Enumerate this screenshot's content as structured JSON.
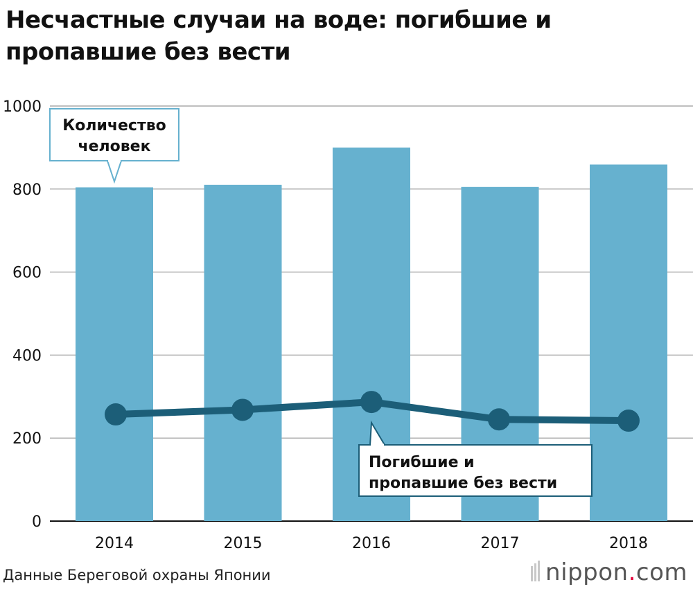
{
  "title": "Несчастные случаи на воде: погибшие и пропавшие без вести",
  "source": "Данные Береговой охраны Японии",
  "logo": {
    "name": "nippon",
    "dot": ".",
    "tld": "com"
  },
  "colors": {
    "bar": "#66b1cf",
    "line": "#1c5e78",
    "grid": "#999999",
    "axis": "#111111"
  },
  "chart_data": {
    "type": "bar",
    "title": "Несчастные случаи на воде: погибшие и пропавшие без вести",
    "categories": [
      "2014",
      "2015",
      "2016",
      "2017",
      "2018"
    ],
    "ylim": [
      0,
      1000
    ],
    "yticks": [
      "0",
      "200",
      "400",
      "600",
      "800",
      "1000"
    ],
    "grid": true,
    "series": [
      {
        "name": "Количество человек",
        "type": "bar",
        "values": [
          804,
          810,
          900,
          805,
          859
        ]
      },
      {
        "name": "Погибшие и пропавшие без вести",
        "type": "line",
        "values": [
          257,
          268,
          287,
          245,
          242
        ]
      }
    ],
    "callouts": {
      "bar_label": [
        "Количество",
        "человек"
      ],
      "line_label": [
        "Погибшие и",
        "пропавшие без вести"
      ]
    }
  }
}
